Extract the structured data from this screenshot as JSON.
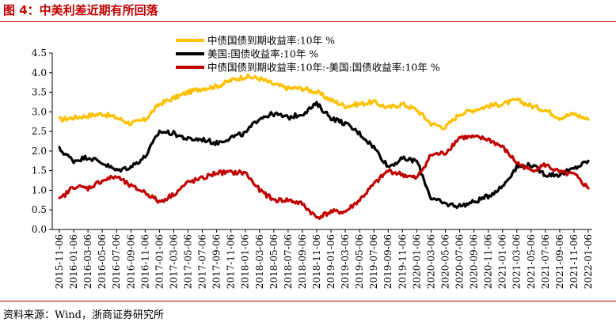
{
  "figure": {
    "title": "图 4：中美利差近期有所回落",
    "source": "资料来源：Wind，浙商证券研究所"
  },
  "colors": {
    "title_red": "#c00000",
    "series_yellow": "#ffc000",
    "series_black": "#000000",
    "series_red": "#c00000"
  },
  "chart_data": {
    "type": "line",
    "title": "图 4：中美利差近期有所回落",
    "xlabel": "",
    "ylabel": "",
    "ylim": [
      0,
      4.5
    ],
    "yticks": [
      "0.0",
      "0.5",
      "1.0",
      "1.5",
      "2.0",
      "2.5",
      "3.0",
      "3.5",
      "4.0",
      "4.5"
    ],
    "xticks": [
      "2015-11-06",
      "2016-01-06",
      "2016-03-06",
      "2016-05-06",
      "2016-07-06",
      "2016-09-06",
      "2016-11-06",
      "2017-01-06",
      "2017-03-06",
      "2017-05-06",
      "2017-07-06",
      "2017-09-06",
      "2017-11-06",
      "2018-01-06",
      "2018-03-06",
      "2018-05-06",
      "2018-07-06",
      "2018-09-06",
      "2018-11-06",
      "2019-01-06",
      "2019-03-06",
      "2019-05-06",
      "2019-07-06",
      "2019-09-06",
      "2019-11-06",
      "2020-01-06",
      "2020-03-06",
      "2020-05-06",
      "2020-07-06",
      "2020-09-06",
      "2020-11-06",
      "2021-01-06",
      "2021-03-06",
      "2021-05-06",
      "2021-07-06",
      "2021-09-06",
      "2021-11-06",
      "2022-01-06"
    ],
    "grid": false,
    "legend_position": "top-center",
    "x": [
      "2015-11",
      "2016-01",
      "2016-03",
      "2016-05",
      "2016-07",
      "2016-09",
      "2016-11",
      "2017-01",
      "2017-03",
      "2017-05",
      "2017-07",
      "2017-09",
      "2017-11",
      "2018-01",
      "2018-03",
      "2018-05",
      "2018-07",
      "2018-09",
      "2018-11",
      "2019-01",
      "2019-03",
      "2019-05",
      "2019-07",
      "2019-09",
      "2019-11",
      "2020-01",
      "2020-03",
      "2020-05",
      "2020-07",
      "2020-09",
      "2020-11",
      "2021-01",
      "2021-03",
      "2021-05",
      "2021-07",
      "2021-09",
      "2021-11",
      "2022-01"
    ],
    "series": [
      {
        "name": "中债国债到期收益率:10年 %",
        "color": "#ffc000",
        "values": [
          2.8,
          2.85,
          2.9,
          2.95,
          2.85,
          2.7,
          2.8,
          3.2,
          3.35,
          3.5,
          3.6,
          3.65,
          3.8,
          3.9,
          3.85,
          3.7,
          3.6,
          3.6,
          3.5,
          3.3,
          3.15,
          3.2,
          3.25,
          3.1,
          3.2,
          3.05,
          2.7,
          2.6,
          2.95,
          3.05,
          3.15,
          3.2,
          3.3,
          3.15,
          3.05,
          2.85,
          2.95,
          2.8
        ]
      },
      {
        "name": "美国:国债收益率:10年 %",
        "color": "#000000",
        "values": [
          2.05,
          1.75,
          1.85,
          1.7,
          1.5,
          1.6,
          1.85,
          2.5,
          2.45,
          2.3,
          2.3,
          2.2,
          2.35,
          2.45,
          2.85,
          2.95,
          2.85,
          2.95,
          3.2,
          2.85,
          2.7,
          2.45,
          2.1,
          1.6,
          1.8,
          1.75,
          0.8,
          0.65,
          0.6,
          0.7,
          0.85,
          1.1,
          1.6,
          1.65,
          1.4,
          1.4,
          1.55,
          1.75
        ]
      },
      {
        "name": "中债国债到期收益率:10年:-美国:国债收益率:10年 %",
        "color": "#c00000",
        "values": [
          0.75,
          1.1,
          1.05,
          1.25,
          1.35,
          1.1,
          0.95,
          0.7,
          0.9,
          1.2,
          1.3,
          1.45,
          1.45,
          1.45,
          1.0,
          0.75,
          0.75,
          0.65,
          0.3,
          0.45,
          0.45,
          0.75,
          1.15,
          1.5,
          1.4,
          1.3,
          1.9,
          1.95,
          2.35,
          2.35,
          2.3,
          2.1,
          1.7,
          1.5,
          1.65,
          1.45,
          1.4,
          1.05
        ]
      }
    ]
  }
}
